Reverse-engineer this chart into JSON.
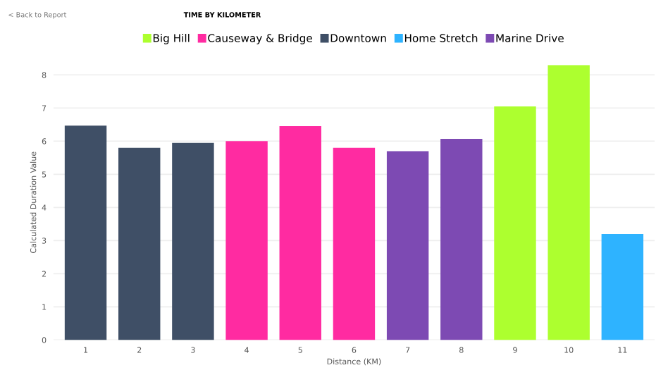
{
  "chart_data": {
    "type": "bar",
    "title": "TIME BY KILOMETER",
    "annotations": [
      "< Back to Report"
    ],
    "xlabel": "Distance (KM)",
    "ylabel": "Calculated Duration Value",
    "categories": [
      "1",
      "2",
      "3",
      "4",
      "5",
      "6",
      "7",
      "8",
      "9",
      "10",
      "11"
    ],
    "series": [
      {
        "name": "Big Hill",
        "color": "#adff2f",
        "values": [
          null,
          null,
          null,
          null,
          null,
          null,
          null,
          null,
          7.05,
          8.3,
          null
        ]
      },
      {
        "name": "Causeway & Bridge",
        "color": "#ff2ba1",
        "values": [
          null,
          null,
          null,
          6.0,
          6.45,
          5.8,
          null,
          null,
          null,
          null,
          null
        ]
      },
      {
        "name": "Downtown",
        "color": "#3f4f66",
        "values": [
          6.47,
          5.8,
          5.95,
          null,
          null,
          null,
          null,
          null,
          null,
          null,
          null
        ]
      },
      {
        "name": "Home Stretch",
        "color": "#2eb3ff",
        "values": [
          null,
          null,
          null,
          null,
          null,
          null,
          null,
          null,
          null,
          null,
          3.2
        ]
      },
      {
        "name": "Marine Drive",
        "color": "#7d4ab3",
        "values": [
          null,
          null,
          null,
          null,
          null,
          null,
          5.7,
          6.07,
          null,
          null,
          null
        ]
      }
    ],
    "ylim": [
      0,
      8.3
    ],
    "yticks": [
      0,
      1,
      2,
      3,
      4,
      5,
      6,
      7,
      8
    ],
    "grid": "y",
    "legend": "top"
  }
}
